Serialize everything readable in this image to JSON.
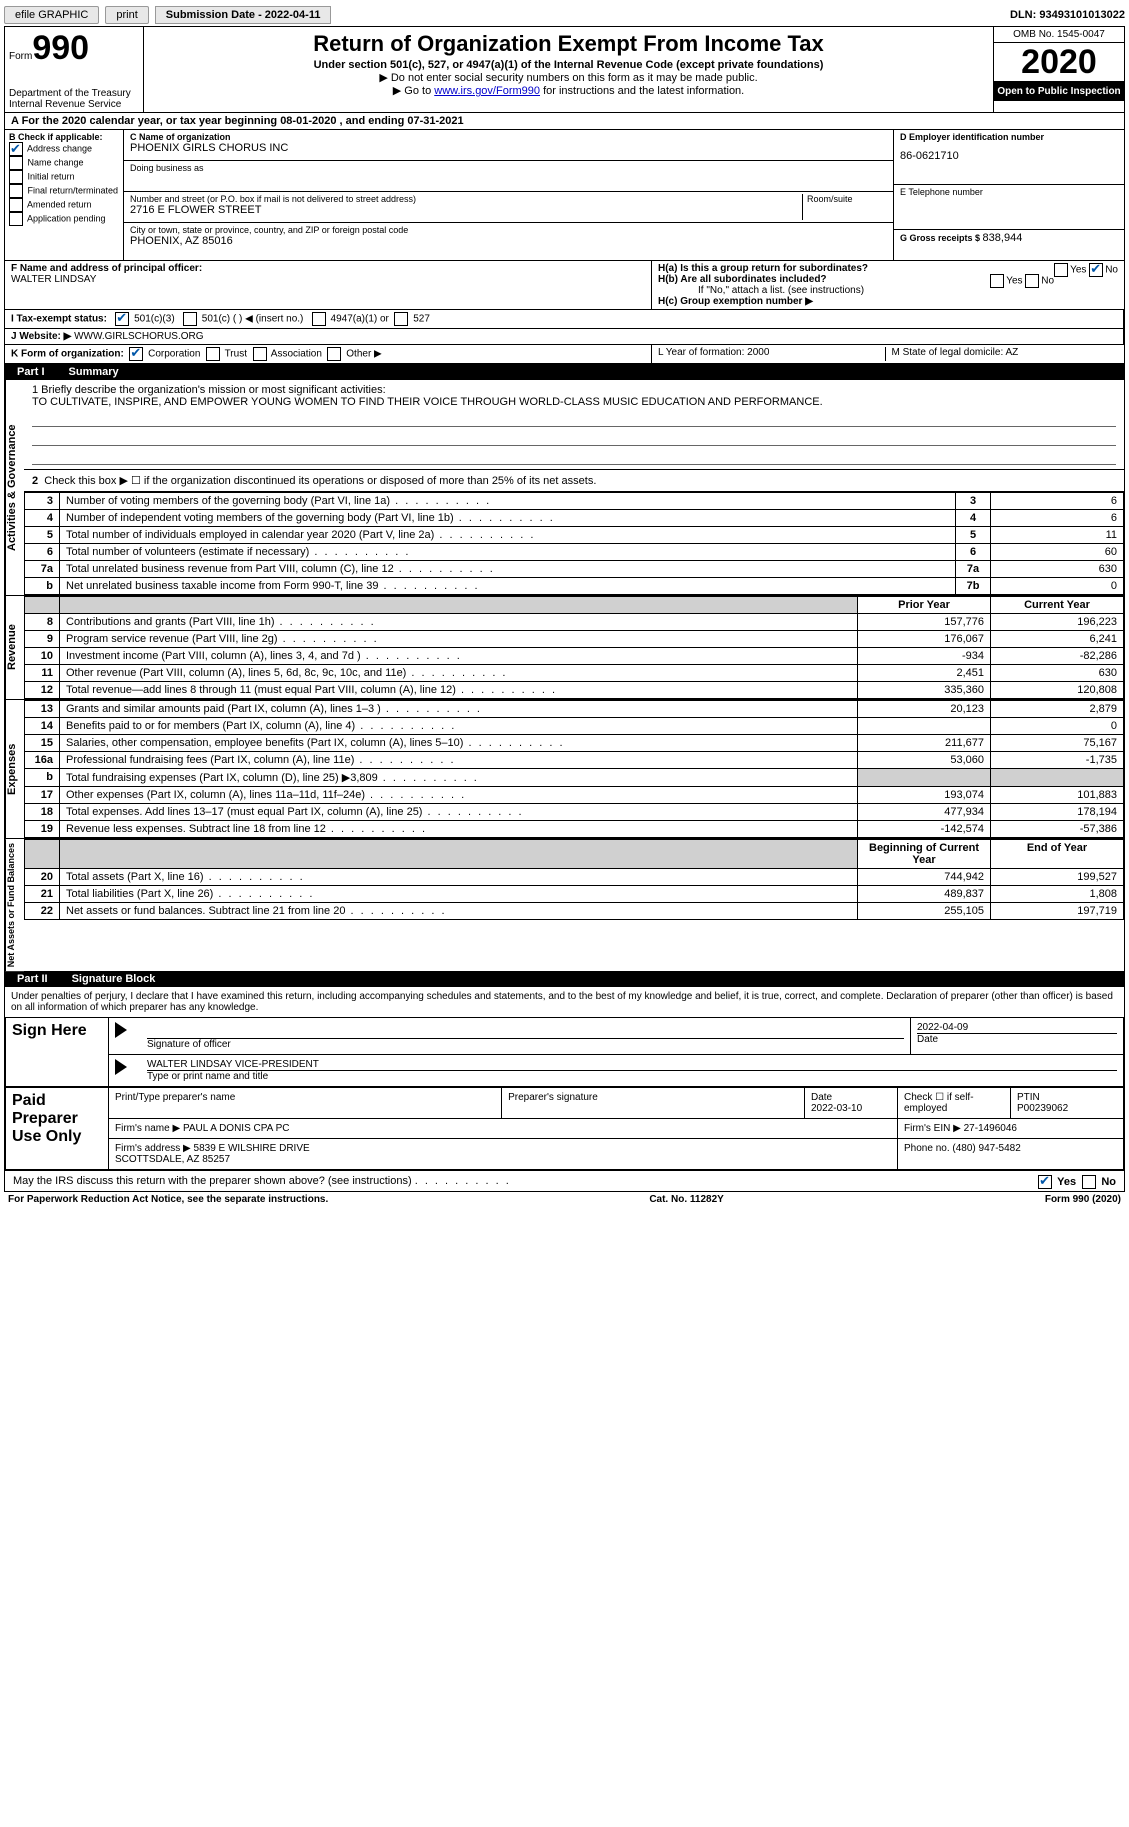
{
  "topbar": {
    "efile": "efile GRAPHIC",
    "print": "print",
    "sub_label": "Submission Date - 2022-04-11",
    "dln": "DLN: 93493101013022"
  },
  "header": {
    "form_word": "Form",
    "form_num": "990",
    "dept": "Department of the Treasury\nInternal Revenue Service",
    "title": "Return of Organization Exempt From Income Tax",
    "subtitle": "Under section 501(c), 527, or 4947(a)(1) of the Internal Revenue Code (except private foundations)",
    "note1": "▶ Do not enter social security numbers on this form as it may be made public.",
    "note2_pre": "▶ Go to ",
    "note2_link": "www.irs.gov/Form990",
    "note2_post": " for instructions and the latest information.",
    "omb": "OMB No. 1545-0047",
    "year": "2020",
    "open": "Open to Public Inspection"
  },
  "period": "A For the 2020 calendar year, or tax year beginning 08-01-2020    , and ending 07-31-2021",
  "boxB": {
    "title": "B Check if applicable:",
    "items": [
      {
        "label": "Address change",
        "checked": true
      },
      {
        "label": "Name change",
        "checked": false
      },
      {
        "label": "Initial return",
        "checked": false
      },
      {
        "label": "Final return/terminated",
        "checked": false
      },
      {
        "label": "Amended return",
        "checked": false
      },
      {
        "label": "Application pending",
        "checked": false
      }
    ]
  },
  "boxC": {
    "name_lbl": "C Name of organization",
    "name": "PHOENIX GIRLS CHORUS INC",
    "dba_lbl": "Doing business as",
    "dba": "",
    "addr_lbl": "Number and street (or P.O. box if mail is not delivered to street address)",
    "room_lbl": "Room/suite",
    "addr": "2716 E FLOWER STREET",
    "city_lbl": "City or town, state or province, country, and ZIP or foreign postal code",
    "city": "PHOENIX, AZ  85016"
  },
  "boxD": {
    "ein_lbl": "D Employer identification number",
    "ein": "86-0621710",
    "phone_lbl": "E Telephone number",
    "phone": "",
    "gross_lbl": "G Gross receipts $ ",
    "gross": "838,944"
  },
  "rowF": {
    "f_lbl": "F Name and address of principal officer:",
    "f_name": "WALTER LINDSAY",
    "ha": "H(a)  Is this a group return for subordinates?",
    "ha_yes": "Yes",
    "ha_no_checked": true,
    "ha_no": "No",
    "hb": "H(b)  Are all subordinates included?",
    "hb_yes": "Yes",
    "hb_no": "No",
    "hb_note": "If \"No,\" attach a list. (see instructions)",
    "hc": "H(c)  Group exemption number ▶"
  },
  "rowI": {
    "lbl": "I   Tax-exempt status:",
    "opt1": "501(c)(3)",
    "opt1_checked": true,
    "opt2": "501(c) (  ) ◀ (insert no.)",
    "opt3": "4947(a)(1) or",
    "opt4": "527"
  },
  "rowJ": {
    "lbl": "J   Website: ▶",
    "val": "WWW.GIRLSCHORUS.ORG"
  },
  "rowK": {
    "lbl": "K Form of organization:",
    "corp": "Corporation",
    "corp_checked": true,
    "trust": "Trust",
    "assoc": "Association",
    "other": "Other ▶",
    "L": "L Year of formation: 2000",
    "M": "M State of legal domicile: AZ"
  },
  "part1": {
    "hdr_num": "Part I",
    "hdr_title": "Summary",
    "q1": "1  Briefly describe the organization's mission or most significant activities:",
    "mission": "TO CULTIVATE, INSPIRE, AND EMPOWER YOUNG WOMEN TO FIND THEIR VOICE THROUGH WORLD-CLASS MUSIC EDUCATION AND PERFORMANCE.",
    "q2": "Check this box ▶ ☐  if the organization discontinued its operations or disposed of more than 25% of its net assets."
  },
  "gov_lines": [
    {
      "n": "3",
      "d": "Number of voting members of the governing body (Part VI, line 1a)",
      "b": "3",
      "v": "6"
    },
    {
      "n": "4",
      "d": "Number of independent voting members of the governing body (Part VI, line 1b)",
      "b": "4",
      "v": "6"
    },
    {
      "n": "5",
      "d": "Total number of individuals employed in calendar year 2020 (Part V, line 2a)",
      "b": "5",
      "v": "11"
    },
    {
      "n": "6",
      "d": "Total number of volunteers (estimate if necessary)",
      "b": "6",
      "v": "60"
    },
    {
      "n": "7a",
      "d": "Total unrelated business revenue from Part VIII, column (C), line 12",
      "b": "7a",
      "v": "630"
    },
    {
      "n": "b",
      "d": "Net unrelated business taxable income from Form 990-T, line 39",
      "b": "7b",
      "v": "0"
    }
  ],
  "col_hdrs": {
    "prior": "Prior Year",
    "curr": "Current Year"
  },
  "rev_lines": [
    {
      "n": "8",
      "d": "Contributions and grants (Part VIII, line 1h)",
      "p": "157,776",
      "c": "196,223"
    },
    {
      "n": "9",
      "d": "Program service revenue (Part VIII, line 2g)",
      "p": "176,067",
      "c": "6,241"
    },
    {
      "n": "10",
      "d": "Investment income (Part VIII, column (A), lines 3, 4, and 7d )",
      "p": "-934",
      "c": "-82,286"
    },
    {
      "n": "11",
      "d": "Other revenue (Part VIII, column (A), lines 5, 6d, 8c, 9c, 10c, and 11e)",
      "p": "2,451",
      "c": "630"
    },
    {
      "n": "12",
      "d": "Total revenue—add lines 8 through 11 (must equal Part VIII, column (A), line 12)",
      "p": "335,360",
      "c": "120,808"
    }
  ],
  "exp_lines": [
    {
      "n": "13",
      "d": "Grants and similar amounts paid (Part IX, column (A), lines 1–3 )",
      "p": "20,123",
      "c": "2,879"
    },
    {
      "n": "14",
      "d": "Benefits paid to or for members (Part IX, column (A), line 4)",
      "p": "",
      "c": "0"
    },
    {
      "n": "15",
      "d": "Salaries, other compensation, employee benefits (Part IX, column (A), lines 5–10)",
      "p": "211,677",
      "c": "75,167"
    },
    {
      "n": "16a",
      "d": "Professional fundraising fees (Part IX, column (A), line 11e)",
      "p": "53,060",
      "c": "-1,735"
    },
    {
      "n": "b",
      "d": "Total fundraising expenses (Part IX, column (D), line 25) ▶3,809",
      "p": "shade",
      "c": "shade"
    },
    {
      "n": "17",
      "d": "Other expenses (Part IX, column (A), lines 11a–11d, 11f–24e)",
      "p": "193,074",
      "c": "101,883"
    },
    {
      "n": "18",
      "d": "Total expenses. Add lines 13–17 (must equal Part IX, column (A), line 25)",
      "p": "477,934",
      "c": "178,194"
    },
    {
      "n": "19",
      "d": "Revenue less expenses. Subtract line 18 from line 12",
      "p": "-142,574",
      "c": "-57,386"
    }
  ],
  "na_hdrs": {
    "begin": "Beginning of Current Year",
    "end": "End of Year"
  },
  "na_lines": [
    {
      "n": "20",
      "d": "Total assets (Part X, line 16)",
      "p": "744,942",
      "c": "199,527"
    },
    {
      "n": "21",
      "d": "Total liabilities (Part X, line 26)",
      "p": "489,837",
      "c": "1,808"
    },
    {
      "n": "22",
      "d": "Net assets or fund balances. Subtract line 21 from line 20",
      "p": "255,105",
      "c": "197,719"
    }
  ],
  "part2": {
    "hdr_num": "Part II",
    "hdr_title": "Signature Block",
    "declaration": "Under penalties of perjury, I declare that I have examined this return, including accompanying schedules and statements, and to the best of my knowledge and belief, it is true, correct, and complete. Declaration of preparer (other than officer) is based on all information of which preparer has any knowledge."
  },
  "sign": {
    "here": "Sign Here",
    "sig_lbl": "Signature of officer",
    "date_lbl": "Date",
    "date": "2022-04-09",
    "name": "WALTER LINDSAY VICE-PRESIDENT",
    "name_lbl": "Type or print name and title"
  },
  "paid": {
    "lbl": "Paid Preparer Use Only",
    "prep_name_lbl": "Print/Type preparer's name",
    "prep_sig_lbl": "Preparer's signature",
    "date_lbl": "Date",
    "date": "2022-03-10",
    "check_lbl": "Check ☐ if self-employed",
    "ptin_lbl": "PTIN",
    "ptin": "P00239062",
    "firm_name_lbl": "Firm's name   ▶",
    "firm_name": "PAUL A DONIS CPA PC",
    "firm_ein_lbl": "Firm's EIN ▶",
    "firm_ein": "27-1496046",
    "firm_addr_lbl": "Firm's address ▶",
    "firm_addr": "5839 E WILSHIRE DRIVE\nSCOTTSDALE, AZ  85257",
    "phone_lbl": "Phone no.",
    "phone": "(480) 947-5482"
  },
  "discuss": {
    "q": "May the IRS discuss this return with the preparer shown above? (see instructions)",
    "yes": "Yes",
    "yes_checked": true,
    "no": "No"
  },
  "footer": {
    "left": "For Paperwork Reduction Act Notice, see the separate instructions.",
    "mid": "Cat. No. 11282Y",
    "right": "Form 990 (2020)"
  },
  "side_labels": {
    "gov": "Activities & Governance",
    "rev": "Revenue",
    "exp": "Expenses",
    "na": "Net Assets or Fund Balances"
  }
}
